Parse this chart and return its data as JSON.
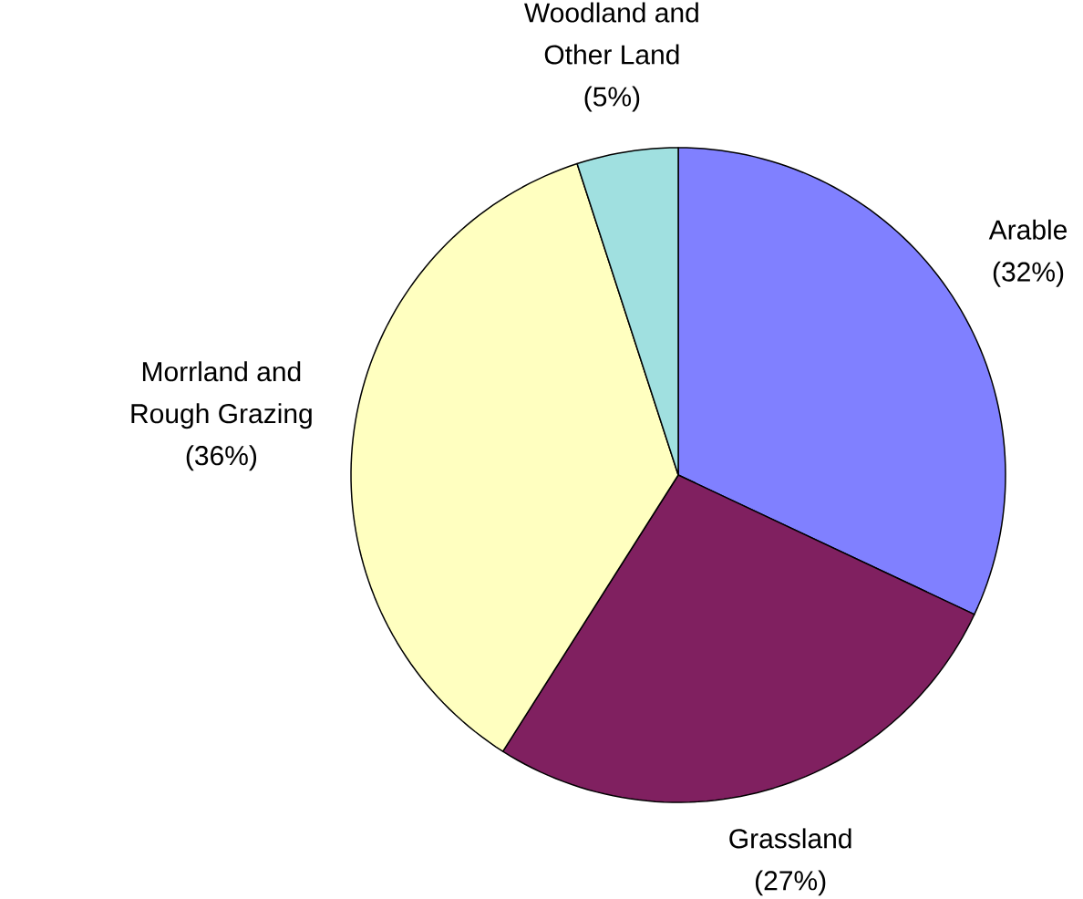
{
  "chart_data": {
    "type": "pie",
    "categories": [
      "Arable",
      "Grassland",
      "Morrland and Rough Grazing",
      "Woodland and Other Land"
    ],
    "values": [
      32,
      27,
      36,
      5
    ],
    "colors": [
      "#8080ff",
      "#802060",
      "#ffffc0",
      "#a0e0e0"
    ],
    "value_labels": [
      "(32%)",
      "(27%)",
      "(36%)",
      "(5%)"
    ]
  }
}
